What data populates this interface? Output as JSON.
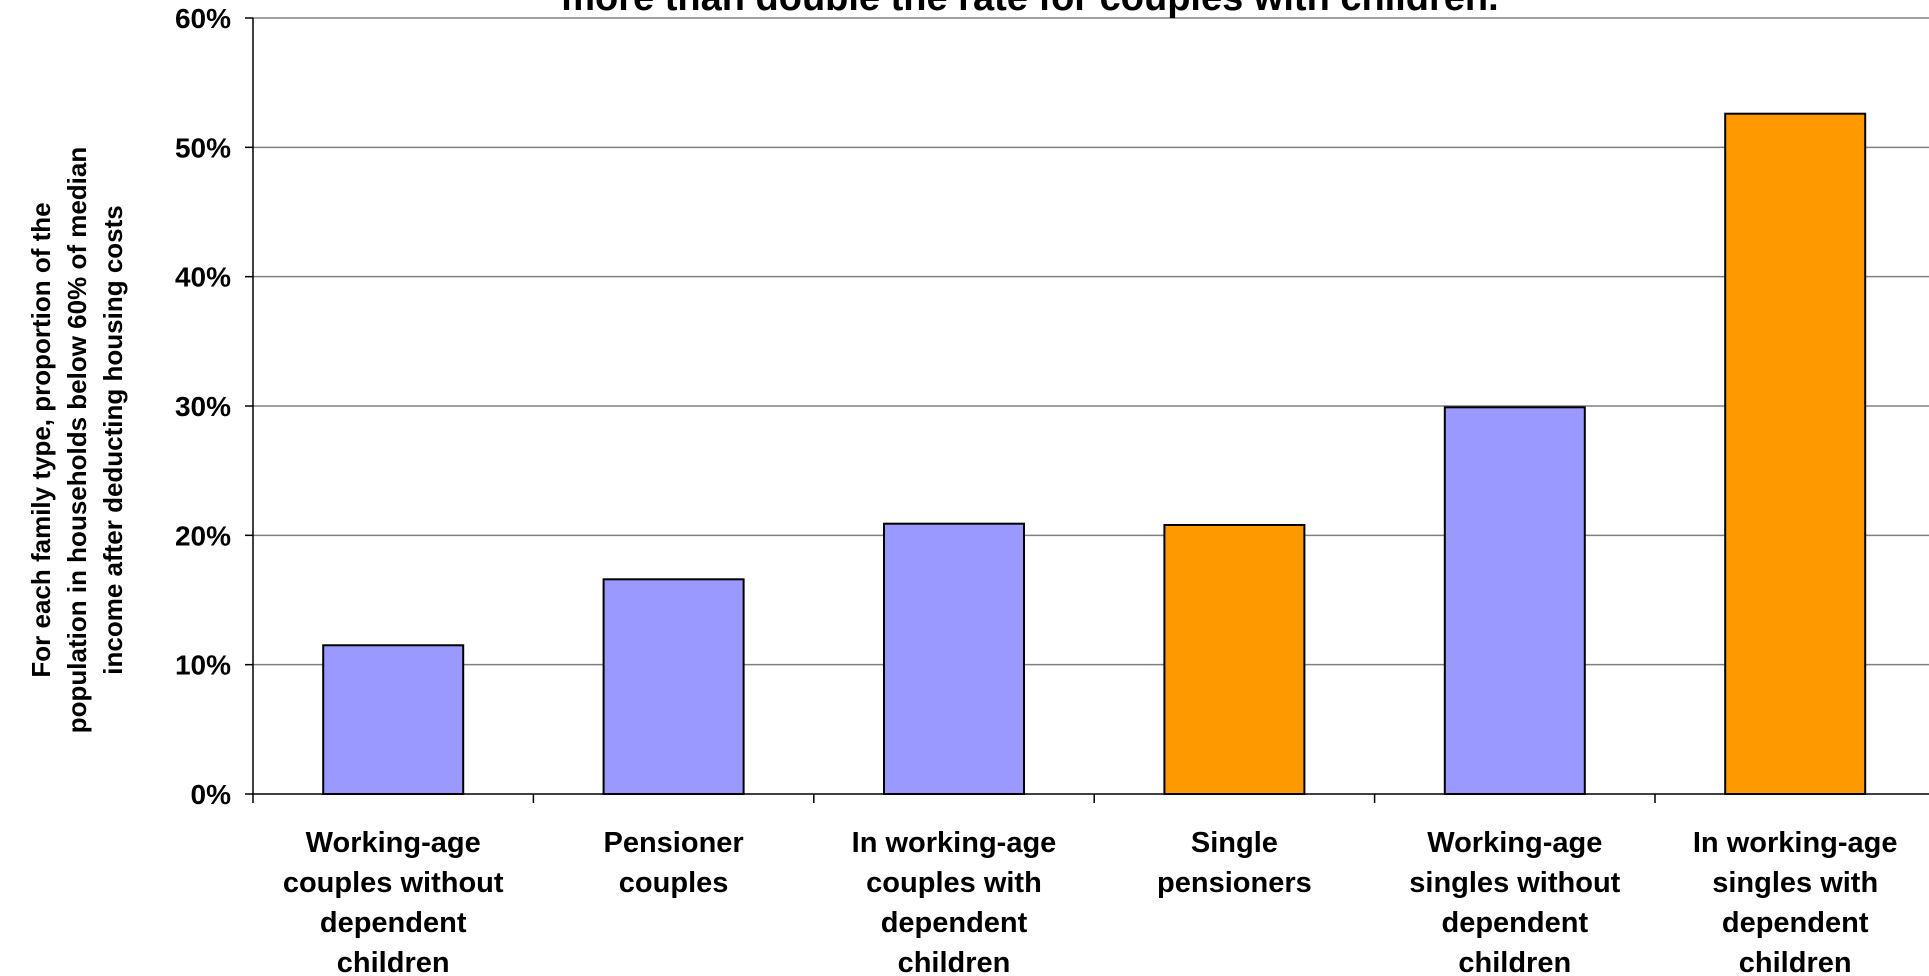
{
  "chart_data": {
    "type": "bar",
    "title": "more than double the rate for couples with children.",
    "ylabel": [
      "For each family type, proportion of the",
      "population in households below 60% of median",
      "income after deducting housing costs"
    ],
    "xlabel": "",
    "ylim": [
      0,
      60
    ],
    "yticks": [
      0,
      10,
      20,
      30,
      40,
      50,
      60
    ],
    "ytick_labels": [
      "0%",
      "10%",
      "20%",
      "30%",
      "40%",
      "50%",
      "60%"
    ],
    "grid": "horizontal",
    "categories": [
      [
        "Working-age",
        "couples without",
        "dependent",
        "children"
      ],
      [
        "Pensioner",
        "couples"
      ],
      [
        "In working-age",
        "couples with",
        "dependent",
        "children"
      ],
      [
        "Single",
        "pensioners"
      ],
      [
        "Working-age",
        "singles without",
        "dependent",
        "children"
      ],
      [
        "In working-age",
        "singles with",
        "dependent",
        "children"
      ]
    ],
    "values": [
      11.5,
      16.6,
      20.9,
      20.8,
      29.9,
      52.6
    ],
    "colors": [
      "#9999ff",
      "#9999ff",
      "#9999ff",
      "#ff9900",
      "#9999ff",
      "#ff9900"
    ]
  }
}
